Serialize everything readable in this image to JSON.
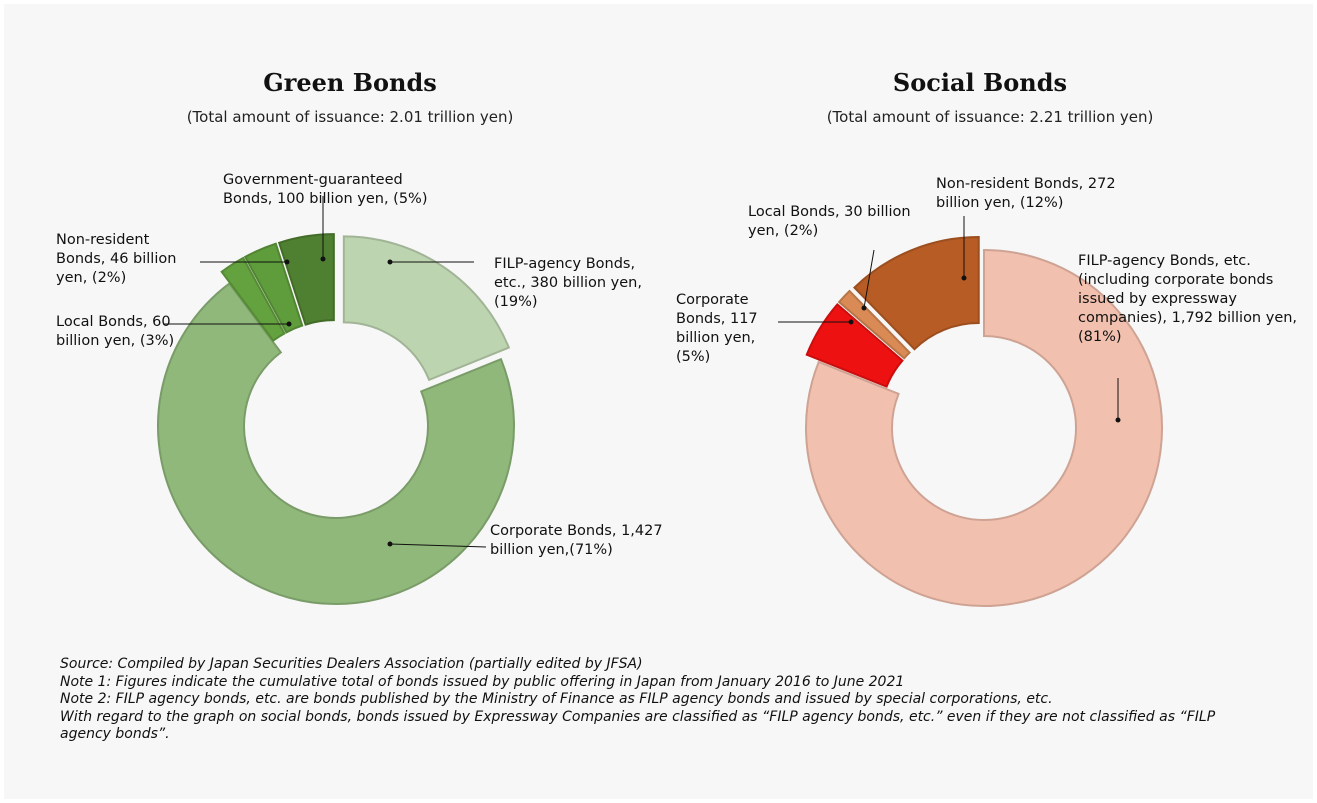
{
  "chart_data": [
    {
      "type": "pie",
      "title": "Green Bonds",
      "subtitle": "(Total amount of issuance: 2.01 trillion yen)",
      "unit": "billion yen",
      "colors": {
        "base": "#8fb87a"
      },
      "slices": [
        {
          "label": "FILP-agency Bonds, etc., 380 billion yen, (19%)",
          "category": "FILP-agency Bonds, etc.",
          "value": 380,
          "percent": 19,
          "color": "#bdd4b0",
          "exploded": true
        },
        {
          "label": "Corporate Bonds, 1,427 billion yen,(71%)",
          "category": "Corporate Bonds",
          "value": 1427,
          "percent": 71,
          "color": "#8fb87a",
          "exploded": false
        },
        {
          "label": "Non-resident Bonds, 46 billion yen, (2%)",
          "category": "Non-resident Bonds",
          "value": 46,
          "percent": 2,
          "color": "#64a23f",
          "exploded": true
        },
        {
          "label": "Local Bonds, 60 billion yen, (3%)",
          "category": "Local Bonds",
          "value": 60,
          "percent": 3,
          "color": "#5f9d3c",
          "exploded": true
        },
        {
          "label": "Government-guaranteed Bonds, 100 billion yen, (5%)",
          "category": "Government-guaranteed Bonds",
          "value": 100,
          "percent": 5,
          "color": "#4f7f30",
          "exploded": true
        }
      ]
    },
    {
      "type": "pie",
      "title": "Social Bonds",
      "subtitle": "(Total amount of issuance: 2.21 trillion yen)",
      "unit": "billion yen",
      "colors": {
        "base": "#f2c0ae"
      },
      "slices": [
        {
          "label": "FILP-agency Bonds, etc. (including corporate bonds issued by expressway companies), 1,792 billion yen, (81%)",
          "category": "FILP-agency Bonds, etc.",
          "value": 1792,
          "percent": 81,
          "color": "#f2c0ae",
          "exploded": false
        },
        {
          "label": "Corporate Bonds, 117 billion yen, (5%)",
          "category": "Corporate Bonds",
          "value": 117,
          "percent": 5,
          "color": "#ee1111",
          "exploded": true
        },
        {
          "label": "Local Bonds, 30 billion yen, (2%)",
          "category": "Local Bonds",
          "value": 30,
          "percent": 2,
          "color": "#d98a55",
          "exploded": true
        },
        {
          "label": "Non-resident Bonds, 272 billion yen, (12%)",
          "category": "Non-resident Bonds",
          "value": 272,
          "percent": 12,
          "color": "#b85c25",
          "exploded": true
        }
      ]
    }
  ],
  "footnotes": {
    "source": "Source: Compiled by Japan Securities Dealers Association (partially edited by JFSA)",
    "note1": "Note 1: Figures indicate the cumulative total of bonds issued by public offering in Japan from January 2016 to June 2021",
    "note2": "Note 2: FILP agency bonds, etc. are bonds published by the Ministry of Finance as FILP agency bonds and issued by special corporations, etc.",
    "note3": "With regard to the graph on social bonds, bonds issued by Expressway Companies are classified as “FILP agency bonds, etc.” even if they are not classified as “FILP agency bonds”."
  }
}
